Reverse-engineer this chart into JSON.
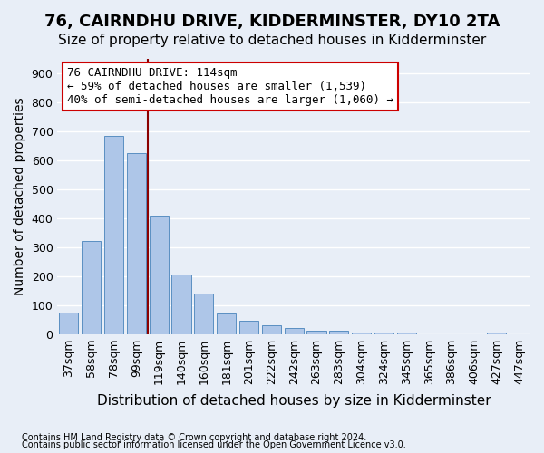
{
  "title": "76, CAIRNDHU DRIVE, KIDDERMINSTER, DY10 2TA",
  "subtitle": "Size of property relative to detached houses in Kidderminster",
  "xlabel": "Distribution of detached houses by size in Kidderminster",
  "ylabel": "Number of detached properties",
  "footnote1": "Contains HM Land Registry data © Crown copyright and database right 2024.",
  "footnote2": "Contains public sector information licensed under the Open Government Licence v3.0.",
  "bin_labels": [
    "37sqm",
    "58sqm",
    "78sqm",
    "99sqm",
    "119sqm",
    "140sqm",
    "160sqm",
    "181sqm",
    "201sqm",
    "222sqm",
    "242sqm",
    "263sqm",
    "283sqm",
    "304sqm",
    "324sqm",
    "345sqm",
    "365sqm",
    "386sqm",
    "406sqm",
    "427sqm",
    "447sqm"
  ],
  "bar_heights": [
    75,
    320,
    685,
    625,
    410,
    205,
    140,
    70,
    45,
    30,
    20,
    10,
    10,
    5,
    5,
    5,
    0,
    0,
    0,
    5,
    0
  ],
  "bar_color": "#aec6e8",
  "bar_edge_color": "#5a8fc2",
  "vline_x": 3.5,
  "vline_color": "#8b0000",
  "annotation_text": "76 CAIRNDHU DRIVE: 114sqm\n← 59% of detached houses are smaller (1,539)\n40% of semi-detached houses are larger (1,060) →",
  "annotation_box_color": "#ffffff",
  "annotation_box_edge": "#cc0000",
  "background_color": "#e8eef7",
  "grid_color": "#ffffff",
  "ylim": [
    0,
    950
  ],
  "yticks": [
    0,
    100,
    200,
    300,
    400,
    500,
    600,
    700,
    800,
    900
  ],
  "title_fontsize": 13,
  "subtitle_fontsize": 11,
  "xlabel_fontsize": 11,
  "ylabel_fontsize": 10,
  "tick_fontsize": 9,
  "annotation_fontsize": 9
}
